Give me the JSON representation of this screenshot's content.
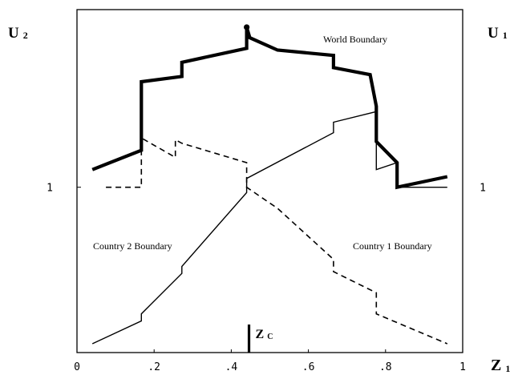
{
  "chart_data": {
    "type": "line",
    "left_axis_label_main": "U",
    "left_axis_label_sub": "2",
    "right_axis_label_main": "U",
    "right_axis_label_sub": "1",
    "x_axis_label_main": "Z",
    "x_axis_label_sub": "1",
    "xlim": [
      0,
      1
    ],
    "ylim": [
      0.53,
      1.505
    ],
    "x_ticks": [
      0,
      0.2,
      0.4,
      0.6,
      0.8,
      1.0
    ],
    "x_tick_labels": [
      "0",
      ".2",
      ".4",
      ".6",
      ".8",
      "1"
    ],
    "left_tick_value": 1,
    "left_tick_label": "1",
    "right_tick_value": 1,
    "right_tick_label": "1",
    "zc_value": 0.446,
    "zc_label_main": "Z",
    "zc_label_sub": "C",
    "annotations": {
      "world": "World Boundary",
      "country2": "Country 2 Boundary",
      "country1": "Country 1 Boundary"
    },
    "series": [
      {
        "style": "thick-solid",
        "points": [
          [
            0.04,
            1.05
          ],
          [
            0.167,
            1.105
          ],
          [
            0.167,
            1.3
          ],
          [
            0.272,
            1.315
          ],
          [
            0.272,
            1.355
          ],
          [
            0.44,
            1.395
          ],
          [
            0.44,
            1.455
          ],
          [
            0.448,
            1.425
          ],
          [
            0.52,
            1.39
          ],
          [
            0.665,
            1.375
          ],
          [
            0.665,
            1.34
          ],
          [
            0.76,
            1.32
          ],
          [
            0.776,
            1.23
          ],
          [
            0.776,
            1.13
          ],
          [
            0.83,
            1.07
          ],
          [
            0.83,
            1.0
          ],
          [
            0.96,
            1.03
          ]
        ],
        "endpoint_dot": [
          0.44,
          1.455
        ]
      },
      {
        "style": "thin-solid",
        "points": [
          [
            0.04,
            0.555
          ],
          [
            0.167,
            0.62
          ],
          [
            0.167,
            0.64
          ],
          [
            0.272,
            0.755
          ],
          [
            0.272,
            0.775
          ],
          [
            0.44,
            0.985
          ],
          [
            0.44,
            1.025
          ],
          [
            0.665,
            1.155
          ],
          [
            0.665,
            1.185
          ],
          [
            0.776,
            1.215
          ],
          [
            0.776,
            1.05
          ],
          [
            0.83,
            1.07
          ],
          [
            0.83,
            1.0
          ],
          [
            0.96,
            1.0
          ]
        ]
      },
      {
        "style": "dashed",
        "points": [
          [
            0.075,
            1.0
          ],
          [
            0.167,
            1.0
          ],
          [
            0.167,
            1.14
          ],
          [
            0.255,
            1.085
          ],
          [
            0.255,
            1.135
          ],
          [
            0.272,
            1.125
          ],
          [
            0.44,
            1.07
          ],
          [
            0.44,
            1.0
          ],
          [
            0.52,
            0.94
          ],
          [
            0.665,
            0.795
          ],
          [
            0.665,
            0.76
          ],
          [
            0.776,
            0.7
          ],
          [
            0.776,
            0.64
          ],
          [
            0.96,
            0.555
          ]
        ]
      }
    ]
  }
}
